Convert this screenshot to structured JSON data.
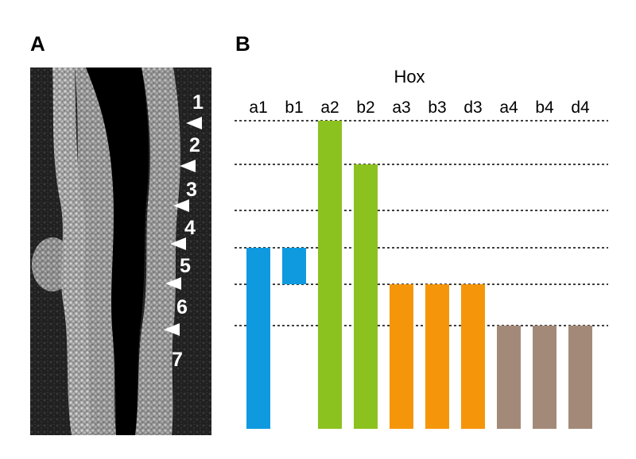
{
  "panels": {
    "a_label": "A",
    "b_label": "B"
  },
  "micrograph": {
    "rhombomeres": [
      "1",
      "2",
      "3",
      "4",
      "5",
      "6",
      "7"
    ]
  },
  "hox": {
    "title": "Hox",
    "genes": [
      {
        "name": "a1",
        "color": "#0f9ae0",
        "start_boundary": 3,
        "end_boundary": 6
      },
      {
        "name": "b1",
        "color": "#0f9ae0",
        "start_boundary": 3,
        "end_boundary": 4
      },
      {
        "name": "a2",
        "color": "#8cc21f",
        "start_boundary": 0,
        "end_boundary": 6
      },
      {
        "name": "b2",
        "color": "#8cc21f",
        "start_boundary": 1,
        "end_boundary": 6
      },
      {
        "name": "a3",
        "color": "#f5960a",
        "start_boundary": 4,
        "end_boundary": 6
      },
      {
        "name": "b3",
        "color": "#f5960a",
        "start_boundary": 4,
        "end_boundary": 6
      },
      {
        "name": "d3",
        "color": "#f5960a",
        "start_boundary": 4,
        "end_boundary": 6
      },
      {
        "name": "a4",
        "color": "#a38a78",
        "start_boundary": 5,
        "end_boundary": 6
      },
      {
        "name": "b4",
        "color": "#a38a78",
        "start_boundary": 5,
        "end_boundary": 6
      },
      {
        "name": "d4",
        "color": "#a38a78",
        "start_boundary": 5,
        "end_boundary": 6
      }
    ]
  }
}
